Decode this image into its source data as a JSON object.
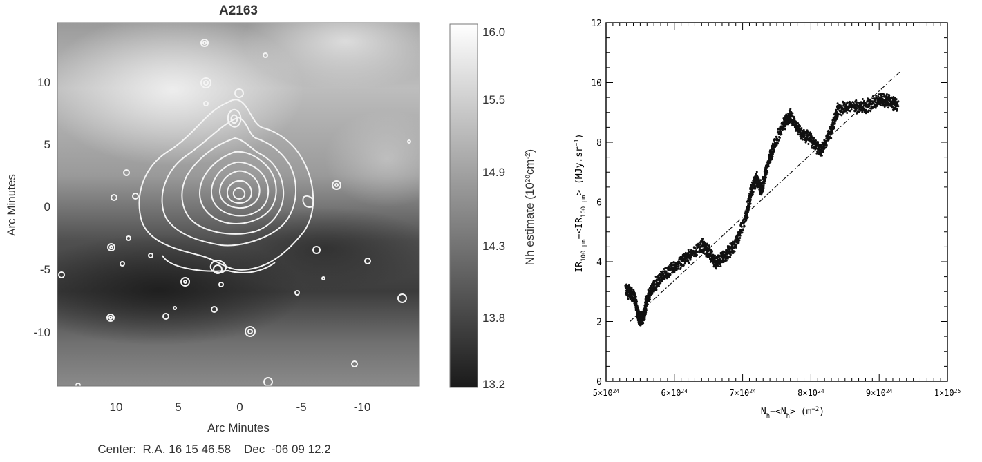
{
  "left_panel": {
    "title": "A2163",
    "x_label": "Arc Minutes",
    "y_label": "Arc Minutes",
    "caption": "Center:  R.A. 16 15 46.58    Dec  -06 09 12.2",
    "x_ticks": [
      "10",
      "5",
      "0",
      "-5",
      "-10"
    ],
    "y_ticks": [
      "10",
      "5",
      "0",
      "-5",
      "-10"
    ],
    "colorbar": {
      "label": "Nh estimate (10",
      "label_exp": "20",
      "label_unit": "cm",
      "label_unit_exp": "-2",
      "label_close": ")",
      "ticks": [
        "16.0",
        "15.5",
        "14.9",
        "14.3",
        "13.8",
        "13.2"
      ]
    }
  },
  "chart_data": {
    "type": "scatter",
    "title": "",
    "xlabel": "N_h - <N_h> (m^-2)",
    "ylabel": "IR_100 μm - <IR_100 μm> (MJy.sr^-1)",
    "xlim": [
      5e+24,
      1e+25
    ],
    "ylim": [
      0,
      12
    ],
    "x_tick_labels": [
      "5×10^24",
      "6×10^24",
      "7×10^24",
      "8×10^24",
      "9×10^24",
      "1×10^25"
    ],
    "y_tick_labels": [
      "0",
      "2",
      "4",
      "6",
      "8",
      "10",
      "12"
    ],
    "trend_points": [
      [
        5.29e+24,
        3.05
      ],
      [
        5.36e+24,
        2.95
      ],
      [
        5.42e+24,
        2.8
      ],
      [
        5.46e+24,
        2.3
      ],
      [
        5.5e+24,
        2.05
      ],
      [
        5.55e+24,
        2.15
      ],
      [
        5.6e+24,
        2.75
      ],
      [
        5.7e+24,
        3.2
      ],
      [
        5.85e+24,
        3.55
      ],
      [
        6e+24,
        3.85
      ],
      [
        6.2e+24,
        4.15
      ],
      [
        6.4e+24,
        4.55
      ],
      [
        6.5e+24,
        4.35
      ],
      [
        6.6e+24,
        4.0
      ],
      [
        6.75e+24,
        4.2
      ],
      [
        6.9e+24,
        4.6
      ],
      [
        7.05e+24,
        5.5
      ],
      [
        7.12e+24,
        6.3
      ],
      [
        7.2e+24,
        6.8
      ],
      [
        7.28e+24,
        6.4
      ],
      [
        7.35e+24,
        7.1
      ],
      [
        7.45e+24,
        7.8
      ],
      [
        7.6e+24,
        8.6
      ],
      [
        7.7e+24,
        8.9
      ],
      [
        7.85e+24,
        8.3
      ],
      [
        8e+24,
        8.1
      ],
      [
        8.15e+24,
        7.7
      ],
      [
        8.3e+24,
        8.4
      ],
      [
        8.4e+24,
        9.1
      ],
      [
        8.6e+24,
        9.2
      ],
      [
        8.8e+24,
        9.2
      ],
      [
        9e+24,
        9.4
      ],
      [
        9.15e+24,
        9.4
      ],
      [
        9.28e+24,
        9.2
      ]
    ],
    "fit_line": {
      "x": [
        5.35e+24,
        9.3e+24
      ],
      "y": [
        2.0,
        10.35
      ]
    },
    "spread": 0.14
  },
  "right_axes": {
    "x_label_main": "N",
    "x_label_sub": "h",
    "x_label_mid": "−<N",
    "x_label_end": ">  (m",
    "x_label_exp": "−2",
    "x_label_close": ")",
    "y_label_main": "IR",
    "y_label_sub": "100 μm",
    "y_label_mid": "−<IR",
    "y_label_end": "> (MJy.sr",
    "y_label_exp": "−1",
    "y_label_close": ")"
  }
}
